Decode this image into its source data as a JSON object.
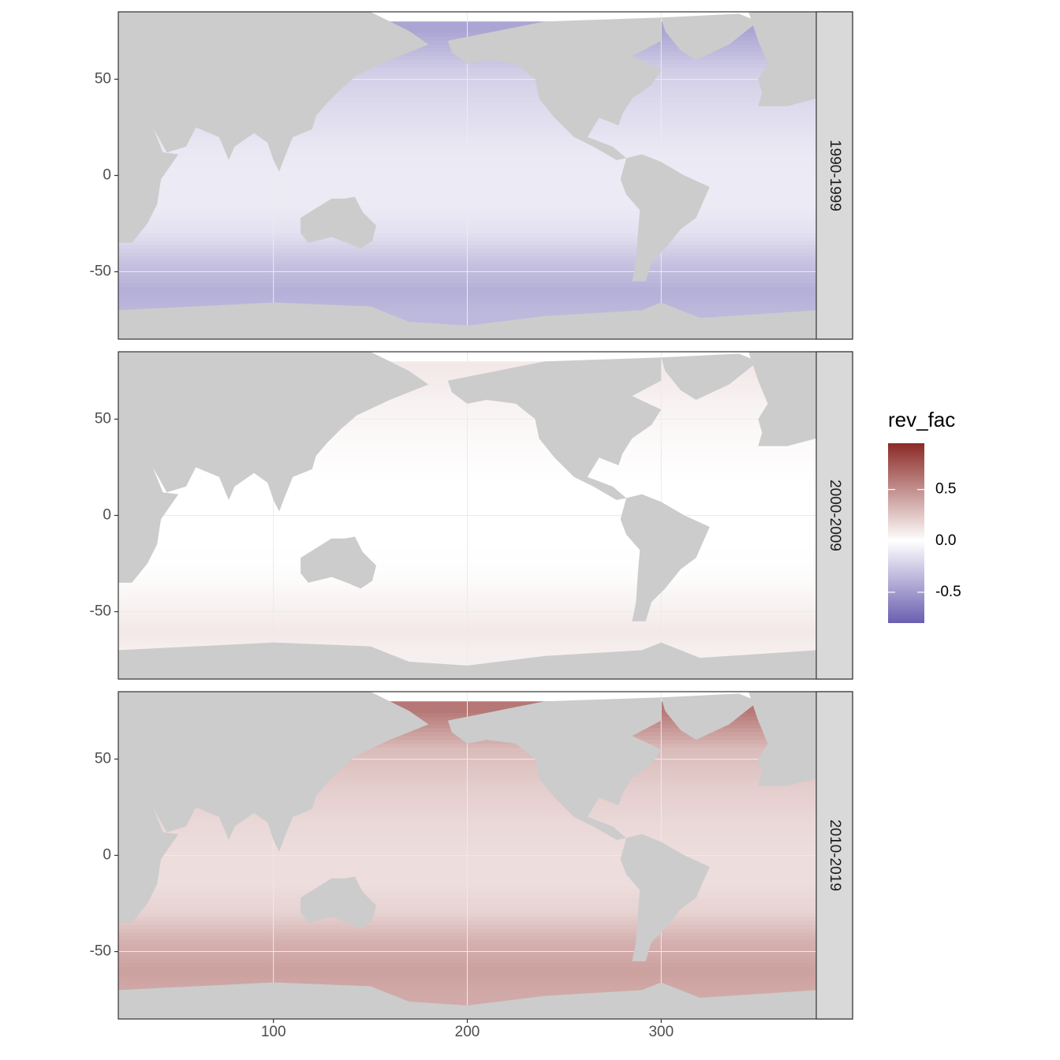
{
  "chart_data": {
    "type": "heatmap",
    "title": "",
    "xlabel": "",
    "ylabel": "",
    "x_ticks": [
      100,
      200,
      300
    ],
    "y_ticks": [
      50,
      0,
      -50
    ],
    "xlim": [
      20,
      380
    ],
    "ylim": [
      -85,
      85
    ],
    "land_color": "#cccccc",
    "grid": true,
    "facet_position": "right",
    "panels": [
      {
        "label": "1990-1999",
        "values_by_lat": [
          {
            "lat": 75,
            "value": -0.45
          },
          {
            "lat": 55,
            "value": -0.25
          },
          {
            "lat": 35,
            "value": -0.18
          },
          {
            "lat": 15,
            "value": -0.12
          },
          {
            "lat": 0,
            "value": -0.1
          },
          {
            "lat": -15,
            "value": -0.1
          },
          {
            "lat": -30,
            "value": -0.15
          },
          {
            "lat": -45,
            "value": -0.3
          },
          {
            "lat": -60,
            "value": -0.4
          },
          {
            "lat": -72,
            "value": -0.35
          }
        ]
      },
      {
        "label": "2000-2009",
        "values_by_lat": [
          {
            "lat": 75,
            "value": 0.1
          },
          {
            "lat": 55,
            "value": 0.05
          },
          {
            "lat": 35,
            "value": 0.02
          },
          {
            "lat": 15,
            "value": 0.0
          },
          {
            "lat": 0,
            "value": 0.0
          },
          {
            "lat": -15,
            "value": 0.0
          },
          {
            "lat": -30,
            "value": 0.01
          },
          {
            "lat": -45,
            "value": 0.05
          },
          {
            "lat": -60,
            "value": 0.1
          },
          {
            "lat": -72,
            "value": 0.07
          }
        ]
      },
      {
        "label": "2010-2019",
        "values_by_lat": [
          {
            "lat": 75,
            "value": 0.6
          },
          {
            "lat": 55,
            "value": 0.3
          },
          {
            "lat": 35,
            "value": 0.22
          },
          {
            "lat": 15,
            "value": 0.17
          },
          {
            "lat": 0,
            "value": 0.15
          },
          {
            "lat": -15,
            "value": 0.15
          },
          {
            "lat": -30,
            "value": 0.2
          },
          {
            "lat": -45,
            "value": 0.35
          },
          {
            "lat": -60,
            "value": 0.42
          },
          {
            "lat": -72,
            "value": 0.38
          }
        ]
      }
    ],
    "legend": {
      "title": "rev_fac",
      "position": "right",
      "labels": [
        "0.5",
        "0.0",
        "-0.5"
      ],
      "breaks": [
        0.5,
        0.0,
        -0.5
      ],
      "range": [
        -0.8,
        0.95
      ],
      "low_color": "#6a5fb0",
      "mid_color": "#ffffff",
      "high_color": "#8b2a26"
    }
  }
}
